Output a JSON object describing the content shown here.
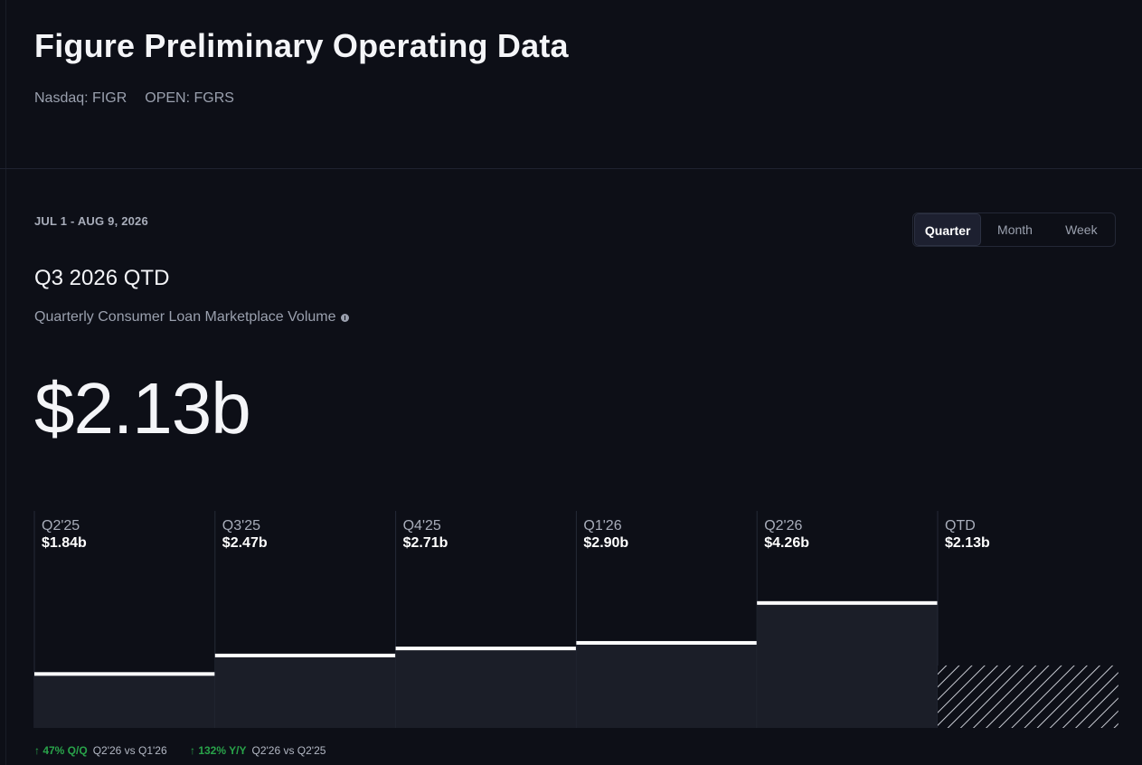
{
  "header": {
    "title": "Figure Preliminary Operating Data",
    "tickers": [
      "Nasdaq: FIGR",
      "OPEN: FGRS"
    ]
  },
  "summary": {
    "date_range": "JUL 1 - AUG 9, 2026",
    "period_title": "Q3 2026 QTD",
    "metric_label": "Quarterly Consumer Loan Marketplace Volume",
    "big_value": "$2.13b"
  },
  "toggle": {
    "options": [
      "Quarter",
      "Month",
      "Week"
    ],
    "selected": "Quarter"
  },
  "colors": {
    "background": "#0d0f17",
    "bar_fill": "#1b1e28",
    "bar_top": "#ffffff",
    "positive": "#29a34a",
    "separator": "#252a37"
  },
  "chart_data": {
    "type": "bar",
    "categories": [
      "Q2'25",
      "Q3'25",
      "Q4'25",
      "Q1'26",
      "Q2'26",
      "QTD"
    ],
    "value_labels": [
      "$1.84b",
      "$2.47b",
      "$2.71b",
      "$2.90b",
      "$4.26b",
      "$2.13b"
    ],
    "values": [
      1.84,
      2.47,
      2.71,
      2.9,
      4.26,
      2.13
    ],
    "partial": [
      false,
      false,
      false,
      false,
      false,
      true
    ],
    "unit": "$b",
    "ylim": [
      0,
      7.4
    ],
    "grid": false
  },
  "footer": {
    "stats": [
      {
        "change": "↑ 47% Q/Q",
        "compare": "Q2'26 vs Q1'26"
      },
      {
        "change": "↑ 132% Y/Y",
        "compare": "Q2'26 vs Q2'25"
      }
    ]
  }
}
